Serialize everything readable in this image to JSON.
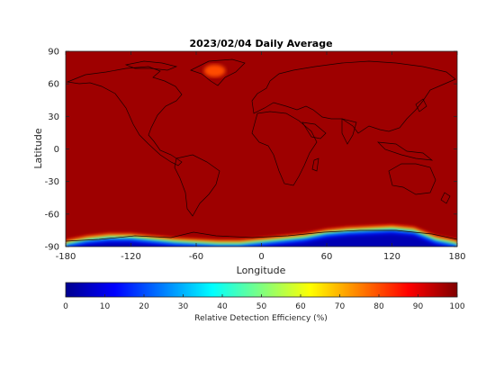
{
  "chart_data": {
    "type": "heatmap",
    "title": "2023/02/04 Daily Average",
    "xlabel": "Longitude",
    "ylabel": "Latitude",
    "xlim": [
      -180,
      180
    ],
    "ylim": [
      -90,
      90
    ],
    "xticks": [
      -180,
      -120,
      -60,
      0,
      60,
      120,
      180
    ],
    "yticks": [
      90,
      60,
      30,
      0,
      -30,
      -60,
      -90
    ],
    "colorbar": {
      "label": "Relative Detection Efficiency (%)",
      "range": [
        0,
        100
      ],
      "ticks": [
        0,
        10,
        20,
        30,
        40,
        50,
        60,
        70,
        80,
        90,
        100
      ],
      "colormap": "jet"
    },
    "field_summary": {
      "background_value": 97,
      "greenland_low_value": 80,
      "antarctic_zone": {
        "lat_range": [
          -90,
          -62
        ],
        "edge_lons": [
          -180,
          -160,
          -140,
          -120,
          -100,
          -80,
          -60,
          -40,
          -20,
          0,
          20,
          40,
          60,
          80,
          100,
          120,
          140,
          160,
          180
        ],
        "edge_lats": [
          -84,
          -80,
          -78,
          -78,
          -80,
          -82,
          -83,
          -84,
          -84,
          -82,
          -80,
          -78,
          -74,
          -72,
          -71,
          -70,
          -72,
          -80,
          -84
        ],
        "inner_min_value": 5
      }
    },
    "grid": false,
    "basemap": "coastlines"
  }
}
